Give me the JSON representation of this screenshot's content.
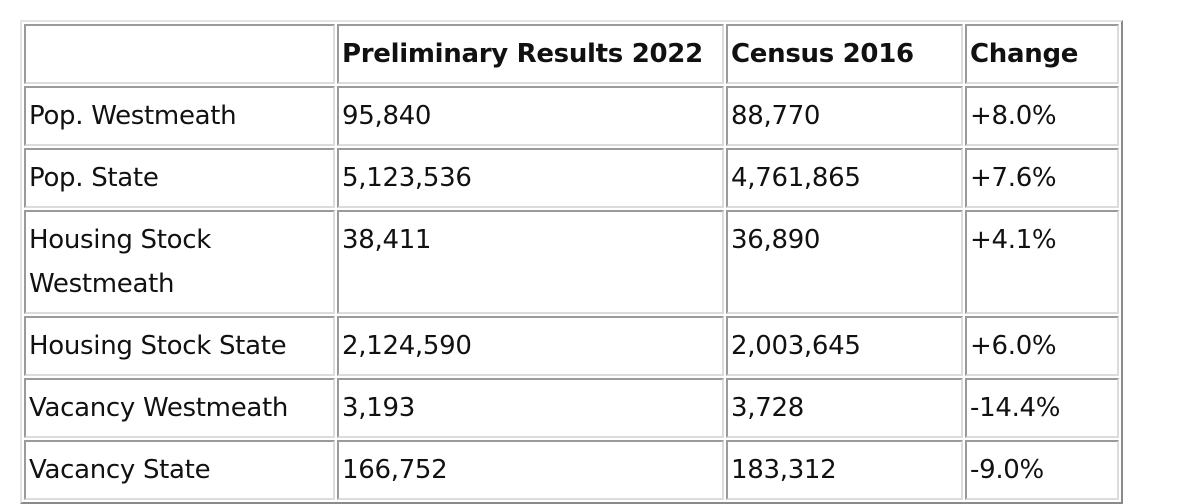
{
  "table": {
    "headers": [
      "",
      "Preliminary Results 2022",
      "Census 2016",
      "Change"
    ],
    "rows": [
      {
        "label": "Pop. Westmeath",
        "prelim_2022": "95,840",
        "census_2016": "88,770",
        "change": "+8.0%"
      },
      {
        "label": "Pop. State",
        "prelim_2022": "5,123,536",
        "census_2016": "4,761,865",
        "change": "+7.6%"
      },
      {
        "label": "Housing Stock Westmeath",
        "prelim_2022": "38,411",
        "census_2016": "36,890",
        "change": "+4.1%"
      },
      {
        "label": "Housing Stock State",
        "prelim_2022": "2,124,590",
        "census_2016": "2,003,645",
        "change": "+6.0%"
      },
      {
        "label": "Vacancy Westmeath",
        "prelim_2022": "3,193",
        "census_2016": "3,728",
        "change": "-14.4%"
      },
      {
        "label": "Vacancy State",
        "prelim_2022": "166,752",
        "census_2016": "183,312",
        "change": "-9.0%"
      }
    ]
  }
}
